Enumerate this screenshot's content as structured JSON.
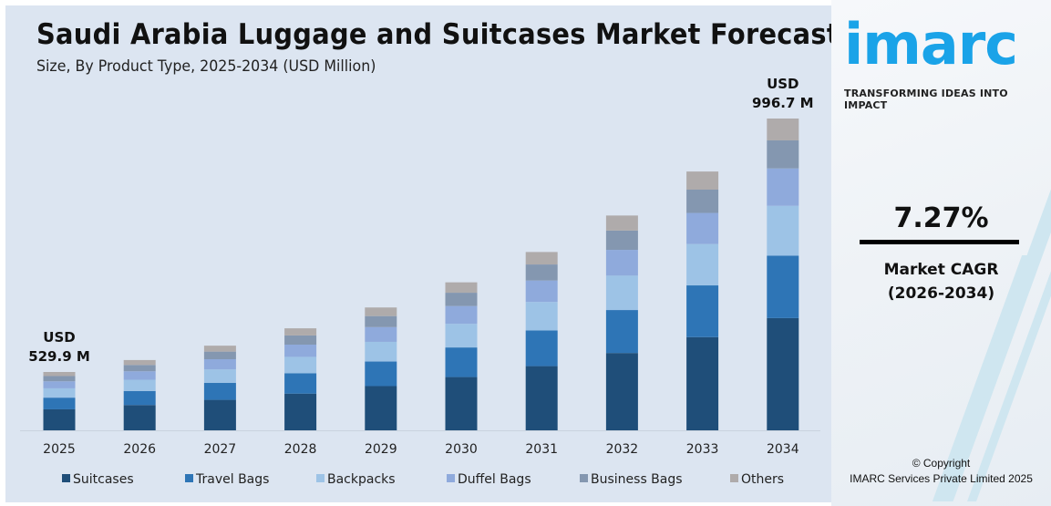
{
  "chart_data": {
    "type": "bar",
    "stacked": true,
    "title": "Saudi Arabia Luggage and Suitcases Market Forecast",
    "subtitle": "Size, By Product Type, 2025-2034 (USD Million)",
    "categories": [
      "2025",
      "2026",
      "2027",
      "2028",
      "2029",
      "2030",
      "2031",
      "2032",
      "2033",
      "2034"
    ],
    "series": [
      {
        "name": "Suitcases",
        "color": "#1f4e79",
        "values": [
          190.8,
          204.6,
          219.5,
          235.5,
          252.6,
          270.9,
          290.7,
          311.8,
          334.5,
          358.8
        ]
      },
      {
        "name": "Travel Bags",
        "color": "#2e75b6",
        "values": [
          106.0,
          113.7,
          121.9,
          130.8,
          140.3,
          150.5,
          161.5,
          173.2,
          185.8,
          199.3
        ]
      },
      {
        "name": "Backpacks",
        "color": "#9dc3e6",
        "values": [
          84.8,
          90.9,
          97.6,
          104.7,
          112.3,
          120.4,
          129.2,
          138.6,
          148.7,
          159.5
        ]
      },
      {
        "name": "Duffel Bags",
        "color": "#8faadc",
        "values": [
          63.6,
          68.2,
          73.2,
          78.5,
          84.2,
          90.3,
          96.9,
          103.9,
          111.5,
          119.6
        ]
      },
      {
        "name": "Business Bags",
        "color": "#8497b0",
        "values": [
          47.7,
          51.2,
          54.9,
          58.9,
          63.1,
          67.7,
          72.7,
          77.9,
          83.6,
          89.7
        ]
      },
      {
        "name": "Others",
        "color": "#afabab",
        "values": [
          37.0,
          39.8,
          42.6,
          45.7,
          49.1,
          52.8,
          56.4,
          60.7,
          65.0,
          69.8
        ]
      }
    ],
    "annotations": [
      {
        "category": "2025",
        "line1": "USD",
        "line2": "529.9 M"
      },
      {
        "category": "2034",
        "line1": "USD",
        "line2": "996.7 M"
      }
    ],
    "legend_position": "bottom",
    "grid": false,
    "y_axis_visible": false
  },
  "brand": {
    "logo": "imarc",
    "tagline": "TRANSFORMING IDEAS INTO IMPACT",
    "color": "#1aa3e8"
  },
  "cagr": {
    "value": "7.27%",
    "label": "Market CAGR",
    "period": "(2026-2034)"
  },
  "footer": {
    "copyright": "© Copyright",
    "company": "IMARC Services Private Limited 2025"
  }
}
